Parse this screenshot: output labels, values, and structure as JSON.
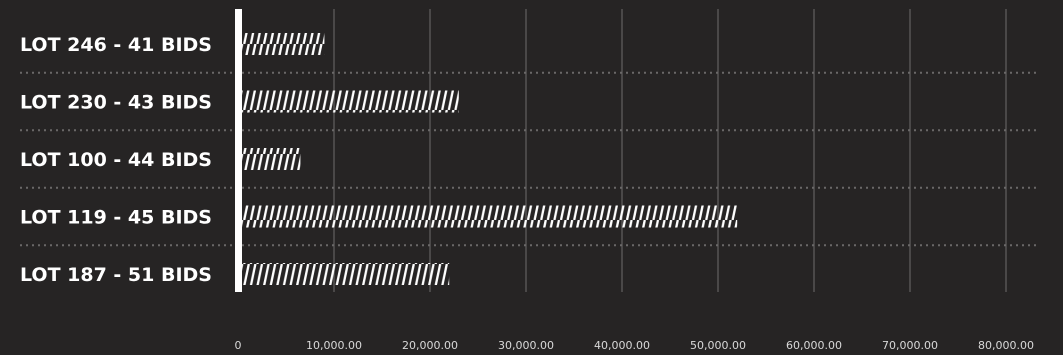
{
  "chart_data": {
    "type": "bar",
    "orientation": "horizontal",
    "title": "",
    "xlabel": "",
    "ylabel": "",
    "categories": [
      "LOT 246 - 41 BIDS",
      "LOT 230 - 43 BIDS",
      "LOT 100 - 44 BIDS",
      "LOT 119 - 45 BIDS",
      "LOT 187 - 51 BIDS"
    ],
    "values": [
      9000,
      23000,
      6500,
      52000,
      22000
    ],
    "xlim": [
      0,
      83000
    ],
    "x_ticks": [
      0,
      10000,
      20000,
      30000,
      40000,
      50000,
      60000,
      70000,
      80000
    ],
    "x_tick_labels": [
      "0",
      "10,000.00",
      "20,000.00",
      "30,000.00",
      "40,000.00",
      "50,000.00",
      "60,000.00",
      "70,000.00",
      "80,000.00"
    ],
    "grid": true,
    "legend": "none",
    "bar_style": "hatched",
    "colors": {
      "background": "#262424",
      "bar": "#ffffff",
      "text": "#ffffff",
      "tick_text": "#d8d8d8",
      "grid": "#6e6c6c"
    }
  }
}
